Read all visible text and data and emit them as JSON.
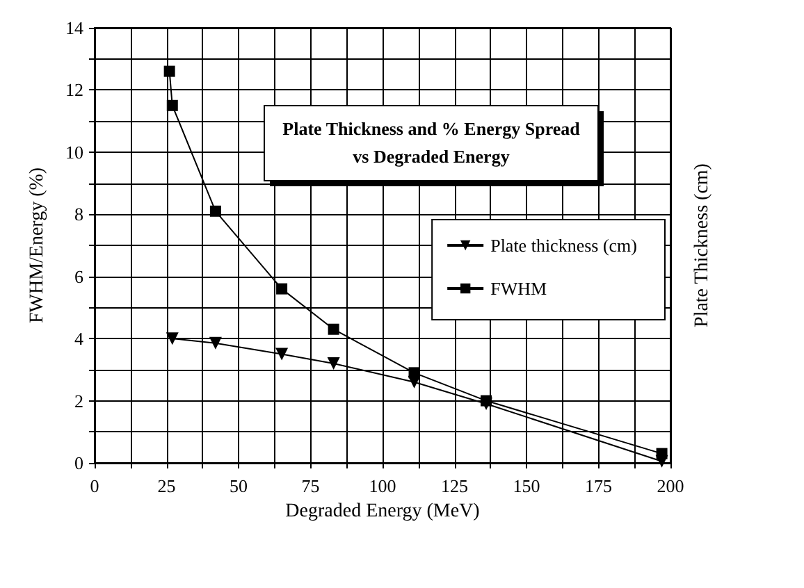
{
  "chart_data": {
    "type": "line",
    "title": "Plate Thickness and % Energy Spread\nvs Degraded Energy",
    "xlabel": "Degraded Energy (MeV)",
    "ylabel": "FWHM/Energy (%)",
    "y2label": "Plate Thickness (cm)",
    "series": [
      {
        "name": "Plate thickness (cm)",
        "color": "#000000",
        "marker": "triangle",
        "x": [
          27,
          42,
          65,
          83,
          111,
          136,
          197
        ],
        "values": [
          4.0,
          3.85,
          3.5,
          3.2,
          2.6,
          1.9,
          0.05
        ]
      },
      {
        "name": "FWHM",
        "color": "#000000",
        "marker": "square",
        "x": [
          26,
          27,
          42,
          65,
          83,
          111,
          136,
          197
        ],
        "values": [
          12.6,
          11.5,
          8.1,
          5.6,
          4.3,
          2.9,
          2.0,
          0.3
        ]
      }
    ],
    "xlim": [
      0,
      200
    ],
    "xticks": [
      0,
      {
        "value": 12.5,
        "label": null
      },
      25,
      {
        "value": 37.5,
        "label": null
      },
      50,
      {
        "value": 62.5,
        "label": null
      },
      75,
      {
        "value": 87.5,
        "label": null
      },
      100,
      {
        "value": 112.5,
        "label": null
      },
      125,
      {
        "value": 137.5,
        "label": null
      },
      150,
      {
        "value": 162.5,
        "label": null
      },
      175,
      {
        "value": 187.5,
        "label": null
      },
      200
    ],
    "ylim": [
      0,
      14
    ],
    "yticks": [
      0,
      {
        "value": 1,
        "label": null
      },
      2,
      {
        "value": 3,
        "label": null
      },
      4,
      {
        "value": 5,
        "label": null
      },
      6,
      {
        "value": 7,
        "label": null
      },
      8,
      {
        "value": 9,
        "label": null
      },
      10,
      {
        "value": 11,
        "label": null
      },
      12,
      {
        "value": 13,
        "label": null
      },
      14
    ],
    "grid": true,
    "legend": "right",
    "line_style": "solid"
  }
}
